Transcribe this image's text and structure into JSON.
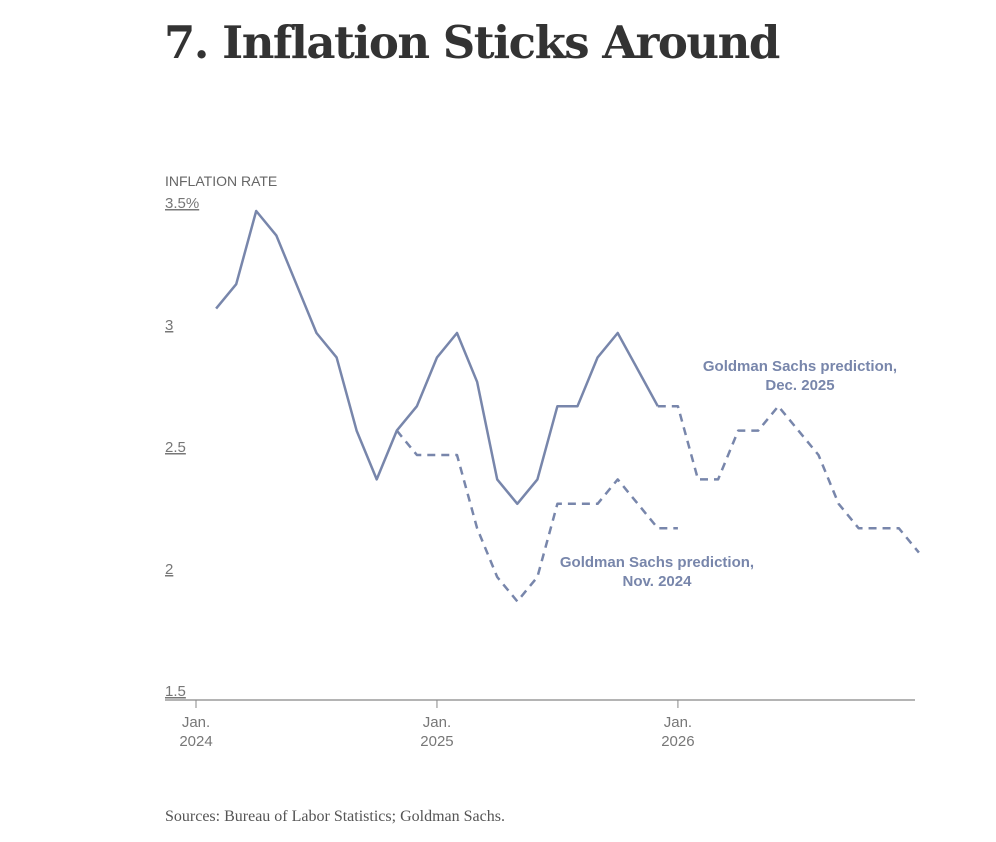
{
  "title": "7. Inflation Sticks Around",
  "source": "Sources: Bureau of Labor Statistics; Goldman Sachs.",
  "chart_data": {
    "type": "line",
    "title": "7. Inflation Sticks Around",
    "ylabel": "INFLATION RATE",
    "ylim": [
      1.5,
      3.5
    ],
    "y_ticks": [
      "3.5%",
      "3",
      "2.5",
      "2",
      "1.5"
    ],
    "y_tick_values": [
      3.5,
      3,
      2.5,
      2,
      1.5
    ],
    "x_ticks": [
      {
        "line1": "Jan.",
        "line2": "2024",
        "date": "2024-01"
      },
      {
        "line1": "Jan.",
        "line2": "2025",
        "date": "2025-01"
      },
      {
        "line1": "Jan.",
        "line2": "2026",
        "date": "2026-01"
      }
    ],
    "xlim": [
      "2024-01",
      "2027-02"
    ],
    "grid": false,
    "line_color": "#7886ab",
    "series": [
      {
        "style": "solid",
        "start": "2024-02",
        "values": [
          3.1,
          3.2,
          3.5,
          3.4,
          3.2,
          3.0,
          2.9,
          2.6,
          2.4,
          2.6,
          2.7,
          2.9,
          3.0,
          2.8,
          2.4,
          2.3,
          2.4,
          2.7,
          2.7,
          2.9,
          3.0,
          2.85,
          2.7
        ]
      },
      {
        "name": "Goldman Sachs prediction, Nov. 2024",
        "style": "dashed",
        "start": "2024-11",
        "values": [
          2.6,
          2.5,
          2.5,
          2.5,
          2.2,
          2.0,
          1.9,
          2.0,
          2.3,
          2.3,
          2.3,
          2.4,
          2.3,
          2.2,
          2.2
        ]
      },
      {
        "name": "Goldman Sachs prediction, Dec. 2025",
        "style": "dashed",
        "start": "2025-12",
        "values": [
          2.7,
          2.7,
          2.4,
          2.4,
          2.6,
          2.6,
          2.7,
          2.6,
          2.5,
          2.3,
          2.2,
          2.2,
          2.2,
          2.1
        ]
      }
    ],
    "annotations": [
      {
        "line1": "Goldman Sachs prediction,",
        "line2": "Dec. 2025",
        "series": 2
      },
      {
        "line1": "Goldman Sachs prediction,",
        "line2": "Nov. 2024",
        "series": 1
      }
    ]
  }
}
